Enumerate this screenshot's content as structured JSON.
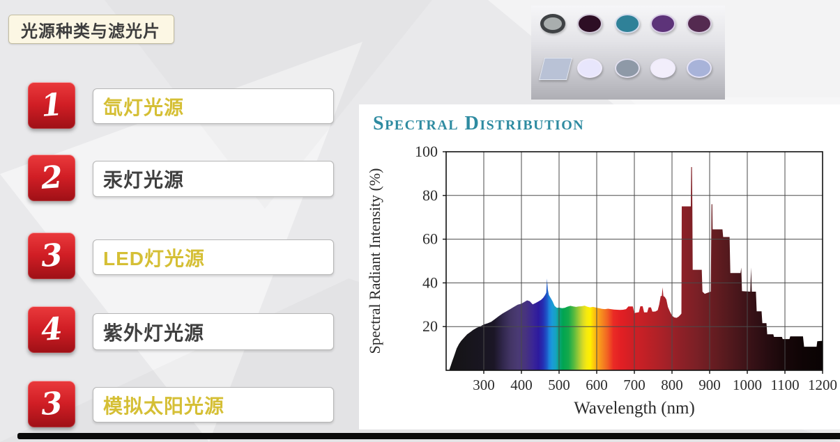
{
  "slide": {
    "title": "光源种类与滤光片",
    "accent_red": "#cf1d24",
    "highlight_yellow": "#d5bf35",
    "text_dark": "#3f3f3f",
    "items": [
      {
        "number": "1",
        "label": "氙灯光源",
        "highlight": true
      },
      {
        "number": "2",
        "label": "汞灯光源",
        "highlight": false
      },
      {
        "number": "3",
        "label": "LED灯光源",
        "highlight": true
      },
      {
        "number": "4",
        "label": "紫外灯光源",
        "highlight": false
      },
      {
        "number": "3",
        "label": "模拟太阳光源",
        "highlight": true
      }
    ]
  },
  "filters_panel": {
    "description": "photo of optical filters",
    "top_row": [
      {
        "name": "gray-lens-filter",
        "color": "#a9aeae",
        "ring": "dark"
      },
      {
        "name": "dark-plum-filter",
        "color": "#2d0e24",
        "ring": "light"
      },
      {
        "name": "teal-filter",
        "color": "#2f8198",
        "ring": "light"
      },
      {
        "name": "purple-filter",
        "color": "#5d3379",
        "ring": "light"
      },
      {
        "name": "plum-filter",
        "color": "#542a50",
        "ring": "light"
      }
    ],
    "bottom_row": [
      {
        "name": "square-glass-filter",
        "color": "#b9c2d6",
        "shape": "square"
      },
      {
        "name": "pale-lavender-filter",
        "color": "#e8e6fc",
        "ring": "light"
      },
      {
        "name": "gray-blue-filter",
        "color": "#8e99a7",
        "ring": "light"
      },
      {
        "name": "white-filter",
        "color": "#f2eefb",
        "ring": "light"
      },
      {
        "name": "periwinkle-filter",
        "color": "#a8b3d9",
        "ring": "light"
      }
    ]
  },
  "chart_data": {
    "type": "area",
    "title": "Spectral Distribution",
    "title_color": "#2e8ba1",
    "xlabel": "Wavelength (nm)",
    "ylabel": "Spectral Radiant Intensity (%)",
    "xlim": [
      200,
      1200
    ],
    "ylim": [
      0,
      100
    ],
    "x_ticks": [
      300,
      400,
      500,
      600,
      700,
      800,
      900,
      1000,
      1100,
      1200
    ],
    "y_ticks": [
      20,
      40,
      60,
      80,
      100
    ],
    "grid": true,
    "legend": "none",
    "series_name": "xenon-lamp spectral radiant intensity",
    "points": [
      [
        208,
        0
      ],
      [
        212,
        2
      ],
      [
        216,
        4
      ],
      [
        220,
        6
      ],
      [
        224,
        8
      ],
      [
        228,
        10
      ],
      [
        234,
        12
      ],
      [
        240,
        13.5
      ],
      [
        248,
        15
      ],
      [
        256,
        16.5
      ],
      [
        264,
        17.5
      ],
      [
        272,
        18.5
      ],
      [
        282,
        19.5
      ],
      [
        292,
        20.2
      ],
      [
        300,
        21
      ],
      [
        310,
        21.5
      ],
      [
        320,
        22.2
      ],
      [
        330,
        23.5
      ],
      [
        340,
        24.8
      ],
      [
        350,
        26
      ],
      [
        360,
        27
      ],
      [
        370,
        28
      ],
      [
        380,
        29
      ],
      [
        390,
        30
      ],
      [
        400,
        30.5
      ],
      [
        408,
        31.3
      ],
      [
        415,
        32
      ],
      [
        422,
        31.6
      ],
      [
        430,
        30.2
      ],
      [
        438,
        30.8
      ],
      [
        445,
        31.5
      ],
      [
        452,
        32.2
      ],
      [
        458,
        33.2
      ],
      [
        463,
        34.5
      ],
      [
        466,
        35.5
      ],
      [
        468,
        42
      ],
      [
        470,
        37
      ],
      [
        473,
        34.5
      ],
      [
        478,
        33
      ],
      [
        483,
        31.5
      ],
      [
        488,
        29.5
      ],
      [
        494,
        28.6
      ],
      [
        500,
        28.7
      ],
      [
        508,
        28.4
      ],
      [
        515,
        28.6
      ],
      [
        522,
        29.1
      ],
      [
        530,
        29.5
      ],
      [
        538,
        29.2
      ],
      [
        545,
        29
      ],
      [
        552,
        29.2
      ],
      [
        560,
        29.3
      ],
      [
        568,
        29.6
      ],
      [
        575,
        29.1
      ],
      [
        582,
        28.8
      ],
      [
        590,
        29
      ],
      [
        598,
        28.7
      ],
      [
        606,
        28.4
      ],
      [
        614,
        28.1
      ],
      [
        622,
        28
      ],
      [
        630,
        28.2
      ],
      [
        638,
        28
      ],
      [
        646,
        27.8
      ],
      [
        654,
        27.7
      ],
      [
        662,
        27.6
      ],
      [
        670,
        27.7
      ],
      [
        678,
        28
      ],
      [
        684,
        29.2
      ],
      [
        696,
        29.2
      ],
      [
        700,
        26.2
      ],
      [
        706,
        26.4
      ],
      [
        712,
        26.6
      ],
      [
        716,
        29.3
      ],
      [
        722,
        29.3
      ],
      [
        726,
        26.5
      ],
      [
        734,
        26.5
      ],
      [
        738,
        28.8
      ],
      [
        744,
        28.8
      ],
      [
        748,
        26.8
      ],
      [
        756,
        26.9
      ],
      [
        762,
        27.5
      ],
      [
        766,
        30
      ],
      [
        770,
        34
      ],
      [
        773,
        34
      ],
      [
        775,
        38
      ],
      [
        777,
        34
      ],
      [
        781,
        33.5
      ],
      [
        785,
        32.4
      ],
      [
        789,
        29
      ],
      [
        794,
        27
      ],
      [
        800,
        25
      ],
      [
        806,
        24.2
      ],
      [
        812,
        24
      ],
      [
        818,
        24.6
      ],
      [
        823,
        25.5
      ],
      [
        825,
        26
      ],
      [
        826,
        75
      ],
      [
        850,
        75
      ],
      [
        851,
        93
      ],
      [
        853,
        93
      ],
      [
        854,
        75
      ],
      [
        855,
        46
      ],
      [
        879,
        46
      ],
      [
        881,
        36
      ],
      [
        887,
        35
      ],
      [
        895,
        35.5
      ],
      [
        903,
        36
      ],
      [
        905,
        76
      ],
      [
        907,
        76
      ],
      [
        908,
        64.5
      ],
      [
        934,
        64.5
      ],
      [
        936,
        61
      ],
      [
        953,
        61
      ],
      [
        955,
        44.5
      ],
      [
        982,
        44.5
      ],
      [
        984,
        47
      ],
      [
        986,
        36.2
      ],
      [
        1008,
        36
      ],
      [
        1010,
        47
      ],
      [
        1012,
        36
      ],
      [
        1023,
        36
      ],
      [
        1025,
        27
      ],
      [
        1038,
        27
      ],
      [
        1040,
        21.6
      ],
      [
        1051,
        21.6
      ],
      [
        1053,
        16.5
      ],
      [
        1069,
        16.5
      ],
      [
        1071,
        15.3
      ],
      [
        1092,
        15.3
      ],
      [
        1094,
        14.3
      ],
      [
        1112,
        14.3
      ],
      [
        1114,
        15.5
      ],
      [
        1148,
        15.5
      ],
      [
        1151,
        10.8
      ],
      [
        1184,
        10.8
      ],
      [
        1186,
        13.3
      ],
      [
        1200,
        13.5
      ]
    ],
    "spectrum_stops": [
      [
        200,
        "#141414"
      ],
      [
        320,
        "#1b1626"
      ],
      [
        345,
        "#32284e"
      ],
      [
        365,
        "#433566"
      ],
      [
        385,
        "#4a3a74"
      ],
      [
        405,
        "#47337f"
      ],
      [
        425,
        "#3a2596"
      ],
      [
        440,
        "#2c1a9e"
      ],
      [
        452,
        "#2430b4"
      ],
      [
        462,
        "#1e59c8"
      ],
      [
        468,
        "#1d83dc"
      ],
      [
        476,
        "#1a9bd8"
      ],
      [
        486,
        "#16a3c0"
      ],
      [
        494,
        "#0ba37c"
      ],
      [
        505,
        "#00a550"
      ],
      [
        520,
        "#15a94b"
      ],
      [
        535,
        "#5bbb3f"
      ],
      [
        548,
        "#a5cc34"
      ],
      [
        558,
        "#d8da26"
      ],
      [
        568,
        "#f5ea0f"
      ],
      [
        578,
        "#ffef00"
      ],
      [
        588,
        "#fdc60d"
      ],
      [
        600,
        "#f9a11a"
      ],
      [
        612,
        "#f58220"
      ],
      [
        625,
        "#f15f22"
      ],
      [
        640,
        "#ea2b25"
      ],
      [
        660,
        "#e21f24"
      ],
      [
        690,
        "#d01f25"
      ],
      [
        720,
        "#c42026"
      ],
      [
        750,
        "#b42127"
      ],
      [
        780,
        "#a52128"
      ],
      [
        820,
        "#8e2027"
      ],
      [
        860,
        "#7c2026"
      ],
      [
        900,
        "#6a1d22"
      ],
      [
        940,
        "#571a1e"
      ],
      [
        980,
        "#45151a"
      ],
      [
        1020,
        "#331015"
      ],
      [
        1060,
        "#240b0f"
      ],
      [
        1100,
        "#170709"
      ],
      [
        1150,
        "#0e0405"
      ],
      [
        1200,
        "#0a0304"
      ]
    ]
  }
}
